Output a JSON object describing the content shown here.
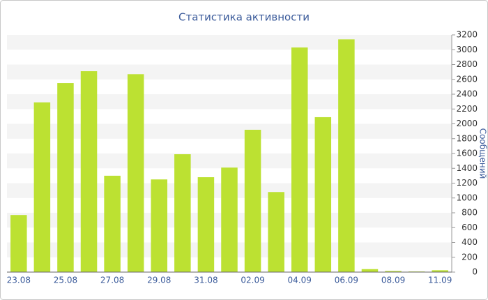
{
  "chart_data": {
    "type": "bar",
    "title": "Статистика активности",
    "y_label": "Сообщений",
    "categories": [
      "23.08",
      null,
      "25.08",
      null,
      "27.08",
      null,
      "29.08",
      null,
      "31.08",
      null,
      "02.09",
      null,
      "04.09",
      null,
      "06.09",
      null,
      "08.09",
      null,
      "11.09"
    ],
    "values": [
      770,
      2290,
      2550,
      2710,
      1300,
      2670,
      1250,
      1590,
      1280,
      1410,
      1920,
      1080,
      3030,
      2090,
      3140,
      40,
      15,
      8,
      25
    ],
    "color": "#bce132",
    "ylim": [
      0,
      3200
    ],
    "yticks": [
      0,
      200,
      400,
      600,
      800,
      1000,
      1200,
      1400,
      1600,
      1800,
      2000,
      2200,
      2400,
      2600,
      2800,
      3000,
      3200
    ],
    "grid": true,
    "y_axis_side": "right"
  }
}
